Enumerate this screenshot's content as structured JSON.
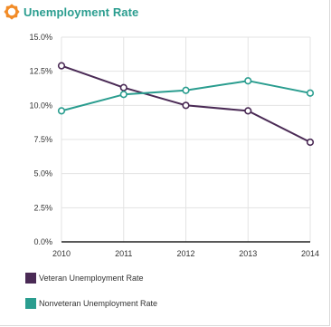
{
  "header": {
    "title": "Unemployment Rate",
    "icon": "gear-badge-icon",
    "icon_color": "#f28c28"
  },
  "chart_data": {
    "type": "line",
    "title": "Unemployment Rate",
    "x": [
      "2010",
      "2011",
      "2012",
      "2013",
      "2014"
    ],
    "ylim": [
      0,
      15
    ],
    "yticks": [
      "0.0%",
      "2.5%",
      "5.0%",
      "7.5%",
      "10.0%",
      "12.5%",
      "15.0%"
    ],
    "grid": true,
    "legend_position": "bottom",
    "series": [
      {
        "name": "Veteran Unemployment Rate",
        "color": "#4a2a55",
        "values": [
          12.9,
          11.3,
          10.0,
          9.6,
          7.3
        ]
      },
      {
        "name": "Nonveteran Unemployment Rate",
        "color": "#2a9d8f",
        "values": [
          9.6,
          10.8,
          11.1,
          11.8,
          10.9
        ]
      }
    ]
  }
}
